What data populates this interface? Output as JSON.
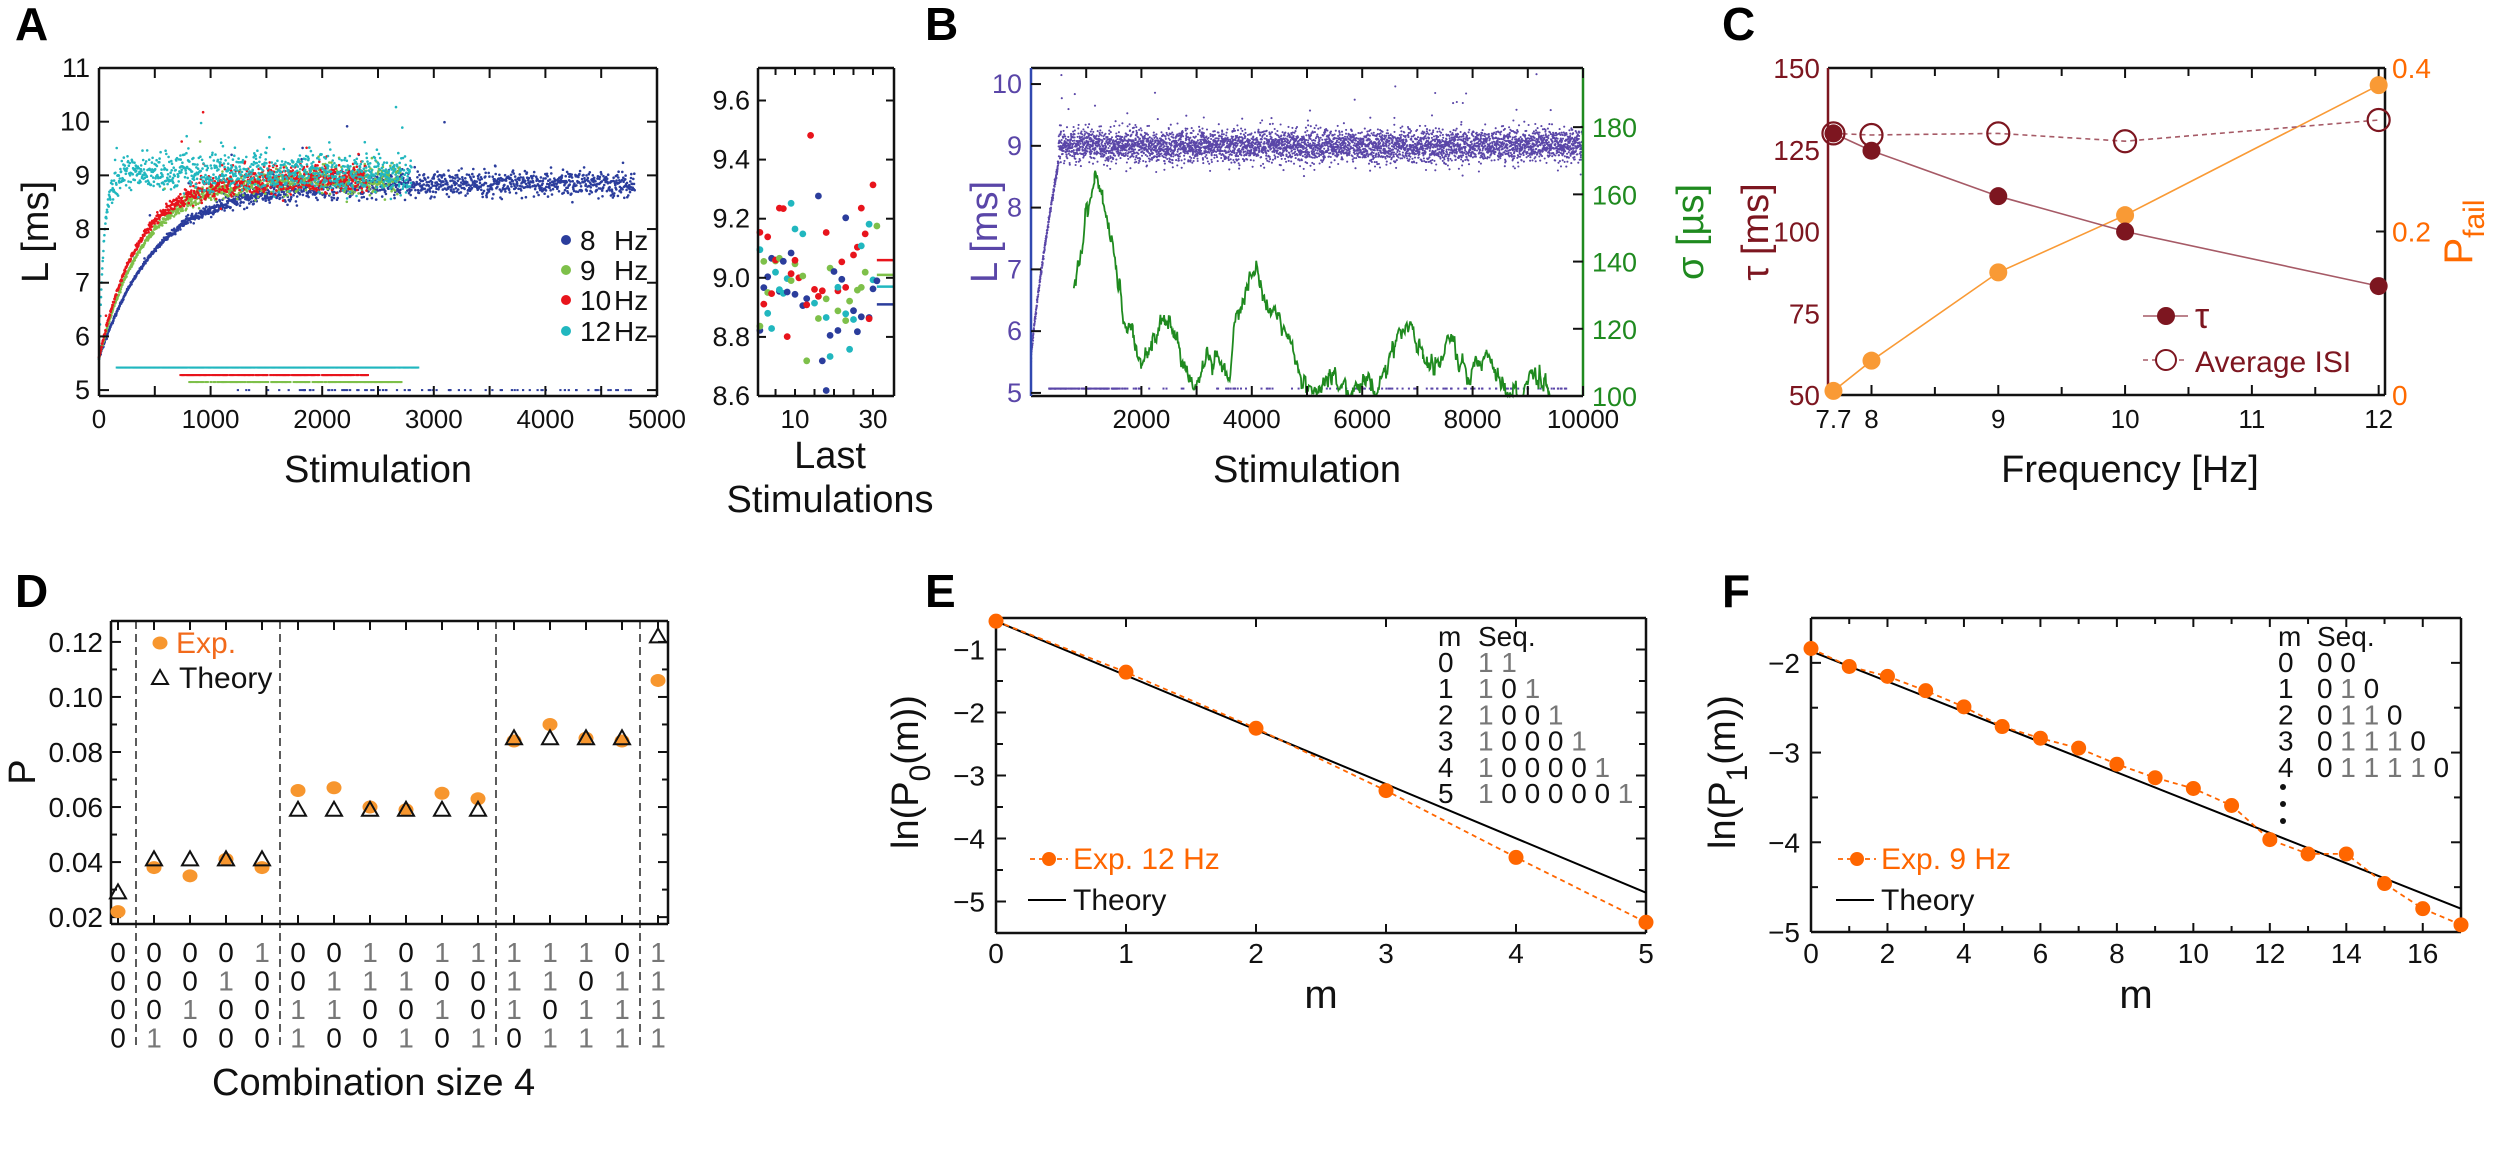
{
  "panel_labels": {
    "A": "A",
    "B": "B",
    "C": "C",
    "D": "D",
    "E": "E",
    "F": "F"
  },
  "chart_data": [
    {
      "panel": "A",
      "type": "scatter",
      "xlabel": "Stimulation",
      "ylabel": "L [ms]",
      "xlim": [
        0,
        5000
      ],
      "ylim": [
        4.89,
        11
      ],
      "xticks": [
        "0",
        "1000",
        "2000",
        "3000",
        "4000",
        "5000"
      ],
      "minor_xtick_step": 500,
      "yticks": [
        "5",
        "6",
        "7",
        "8",
        "9",
        "10",
        "11"
      ],
      "legend_position": "right",
      "series": [
        {
          "name": "8 Hz",
          "freq": "8",
          "unit": "Hz",
          "color": "#2b3d9c",
          "start": 5.6,
          "plateau": 8.85,
          "tau": 520,
          "noise_sd": 0.12,
          "x_range": [
            0,
            4800
          ],
          "failure_level": 5.0,
          "failure_range": [
            1200,
            4800
          ],
          "failure_density": 0.12
        },
        {
          "name": "9 Hz",
          "freq": "9",
          "unit": "Hz",
          "color": "#7ec04a",
          "start": 5.6,
          "plateau": 8.95,
          "tau": 400,
          "noise_sd": 0.13,
          "x_range": [
            0,
            2700
          ],
          "failure_level": 5.15,
          "failure_range": [
            800,
            2700
          ],
          "failure_density": 0.6
        },
        {
          "name": "10 Hz",
          "freq": "10",
          "unit": "Hz",
          "color": "#e8141c",
          "start": 5.6,
          "plateau": 8.95,
          "tau": 350,
          "noise_sd": 0.14,
          "x_range": [
            0,
            2400
          ],
          "failure_level": 5.28,
          "failure_range": [
            720,
            2400
          ],
          "failure_density": 0.7
        },
        {
          "name": "12 Hz",
          "freq": "12",
          "unit": "Hz",
          "color": "#21b7bf",
          "start": 5.6,
          "plateau": 9.05,
          "tau": 45,
          "noise_sd": 0.18,
          "x_range": [
            0,
            2800
          ],
          "failure_level": 5.42,
          "failure_range": [
            150,
            2850
          ],
          "failure_density": 0.95
        }
      ]
    },
    {
      "panel": "A-inset",
      "type": "scatter",
      "xlabel_lines": [
        "Last",
        "Stimulations"
      ],
      "xlim": [
        0.5,
        35.4
      ],
      "ylim": [
        8.6,
        9.71
      ],
      "xticks": [
        "10",
        "30"
      ],
      "minor_xticks": [
        5,
        10,
        15,
        20,
        25,
        30
      ],
      "yticks": [
        "8.6",
        "8.8",
        "9.0",
        "9.2",
        "9.4",
        "9.6"
      ],
      "n_points": 31,
      "noise_sd": 0.13,
      "series": [
        {
          "name": "8 Hz",
          "color": "#2b3d9c",
          "mean": 8.91
        },
        {
          "name": "9 Hz",
          "color": "#7ec04a",
          "mean": 9.01
        },
        {
          "name": "10 Hz",
          "color": "#e8141c",
          "mean": 9.06
        },
        {
          "name": "12 Hz",
          "color": "#21b7bf",
          "mean": 8.97
        }
      ]
    },
    {
      "panel": "B",
      "type": "scatter+line",
      "xlabel": "Stimulation",
      "ylabel": "L [ms]",
      "y2label": "σ [µs]",
      "xlim": [
        0,
        10000
      ],
      "ylim": [
        4.95,
        10.26
      ],
      "y2lim": [
        100,
        197.6
      ],
      "xticks": [
        "2000",
        "4000",
        "6000",
        "8000",
        "10000"
      ],
      "minor_xtick_step": 1000,
      "yticks": [
        "5",
        "6",
        "7",
        "8",
        "9",
        "10"
      ],
      "y2ticks": [
        "100",
        "120",
        "140",
        "160",
        "180"
      ],
      "latency": {
        "color": "#5a46a8",
        "start": 5.5,
        "rise_end": 500,
        "plateau": 9.0,
        "noise_sd": 0.13,
        "failure_level": 5.07
      },
      "sigma": {
        "color": "#1f8a1f",
        "knots": [
          [
            775,
            133
          ],
          [
            900,
            140
          ],
          [
            1000,
            155
          ],
          [
            1100,
            160
          ],
          [
            1150,
            166
          ],
          [
            1300,
            156
          ],
          [
            1450,
            148
          ],
          [
            1600,
            135
          ],
          [
            1700,
            120
          ],
          [
            1850,
            118
          ],
          [
            2000,
            110
          ],
          [
            2200,
            114
          ],
          [
            2400,
            124
          ],
          [
            2600,
            118
          ],
          [
            2800,
            108
          ],
          [
            3000,
            104
          ],
          [
            3200,
            112
          ],
          [
            3400,
            109
          ],
          [
            3600,
            106
          ],
          [
            3700,
            124
          ],
          [
            3900,
            132
          ],
          [
            4100,
            140
          ],
          [
            4200,
            129
          ],
          [
            4400,
            124
          ],
          [
            4700,
            117
          ],
          [
            4900,
            104
          ],
          [
            5200,
            101
          ],
          [
            5400,
            107
          ],
          [
            5800,
            101
          ],
          [
            6100,
            104
          ],
          [
            6300,
            102
          ],
          [
            6500,
            112
          ],
          [
            6700,
            118
          ],
          [
            6880,
            122
          ],
          [
            7100,
            112
          ],
          [
            7300,
            108
          ],
          [
            7600,
            117
          ],
          [
            7900,
            104
          ],
          [
            8250,
            114
          ],
          [
            8500,
            104
          ],
          [
            8700,
            100
          ],
          [
            8900,
            101
          ],
          [
            9050,
            107
          ],
          [
            9200,
            108
          ],
          [
            9350,
            101
          ],
          [
            9400,
            100
          ]
        ]
      }
    },
    {
      "panel": "C",
      "type": "line",
      "xlabel": "Frequency [Hz]",
      "ylabel": "τ [ms]",
      "y2label_main": "P",
      "y2label_sub": "fail",
      "xlim": [
        7.657,
        12.05
      ],
      "ylim": [
        50,
        150
      ],
      "y2lim": [
        0,
        0.4
      ],
      "xticks": [
        "7.7",
        "8",
        "9",
        "10",
        "11",
        "12"
      ],
      "minor_xticks": [
        8.5,
        9.5,
        10.5,
        11.5
      ],
      "yticks": [
        "50",
        "75",
        "100",
        "125",
        "150"
      ],
      "y2ticks": [
        "0",
        "0.2",
        "0.4"
      ],
      "x": [
        7.7,
        8,
        9,
        10,
        12
      ],
      "legend_position": "center-right",
      "series": [
        {
          "name": "τ",
          "axis": "left",
          "color": "#7d1620",
          "line_color": "#a65a66",
          "marker": "filled",
          "values": [
            130,
            124.7,
            110.8,
            100,
            83.3
          ]
        },
        {
          "name": "Average ISI",
          "axis": "left",
          "color": "#7d1620",
          "line_color": "#a65a66",
          "marker": "open",
          "dashed": true,
          "values": [
            130,
            129.5,
            130,
            127.6,
            134.1
          ]
        },
        {
          "name": "Pfail",
          "axis": "right",
          "color": "#f99a35",
          "line_color": "#f99a35",
          "marker": "filled",
          "values": [
            0.005,
            0.042,
            0.15,
            0.22,
            0.379
          ]
        }
      ]
    },
    {
      "panel": "D",
      "type": "scatter",
      "ylabel": "P",
      "xlabel": "Combination size 4",
      "ylim": [
        0.0175,
        0.1276
      ],
      "yticks": [
        "0.02",
        "0.04",
        "0.06",
        "0.08",
        "0.10",
        "0.12"
      ],
      "minor_yticks": [
        0.03,
        0.05,
        0.07,
        0.09,
        0.11
      ],
      "combinations": [
        [
          "0",
          "0",
          "0",
          "0"
        ],
        [
          "0",
          "0",
          "0",
          "1"
        ],
        [
          "0",
          "0",
          "1",
          "0"
        ],
        [
          "0",
          "1",
          "0",
          "0"
        ],
        [
          "1",
          "0",
          "0",
          "0"
        ],
        [
          "0",
          "0",
          "1",
          "1"
        ],
        [
          "0",
          "1",
          "1",
          "0"
        ],
        [
          "1",
          "1",
          "0",
          "0"
        ],
        [
          "0",
          "1",
          "0",
          "1"
        ],
        [
          "1",
          "0",
          "1",
          "0"
        ],
        [
          "1",
          "0",
          "0",
          "1"
        ],
        [
          "1",
          "1",
          "1",
          "0"
        ],
        [
          "1",
          "1",
          "0",
          "1"
        ],
        [
          "1",
          "0",
          "1",
          "1"
        ],
        [
          "0",
          "1",
          "1",
          "1"
        ],
        [
          "1",
          "1",
          "1",
          "1"
        ]
      ],
      "group_boundaries_after": [
        0,
        4,
        10,
        14
      ],
      "legend_position": "top-left",
      "series": [
        {
          "name": "Exp.",
          "color": "#f7962e",
          "marker": "filled-circle",
          "values": [
            0.022,
            0.038,
            0.035,
            0.041,
            0.038,
            0.066,
            0.067,
            0.06,
            0.059,
            0.065,
            0.063,
            0.084,
            0.09,
            0.085,
            0.084,
            0.106
          ]
        },
        {
          "name": "Theory",
          "color": "#111111",
          "marker": "open-triangle",
          "values": [
            0.029,
            0.041,
            0.041,
            0.041,
            0.041,
            0.059,
            0.059,
            0.059,
            0.059,
            0.059,
            0.059,
            0.085,
            0.085,
            0.085,
            0.085,
            0.122
          ]
        }
      ]
    },
    {
      "panel": "E",
      "type": "line",
      "xlabel": "m",
      "ylabel": {
        "pre": "ln(P",
        "sub": "0",
        "post": "(m))"
      },
      "xlim": [
        0,
        5
      ],
      "ylim": [
        -5.5,
        -0.5
      ],
      "xticks": [
        "0",
        "1",
        "2",
        "3",
        "4",
        "5"
      ],
      "yticks": [
        "−1",
        "−2",
        "−3",
        "−4",
        "−5"
      ],
      "minor_yticks": [
        -1.5,
        -2.5,
        -3.5,
        -4.5
      ],
      "legend_position": "bottom-left",
      "series": [
        {
          "name": "Exp. 12 Hz",
          "color": "#ff6600",
          "dashed": true,
          "x": [
            0,
            1,
            2,
            3,
            4,
            5
          ],
          "y": [
            -0.55,
            -1.36,
            -2.25,
            -3.24,
            -4.3,
            -5.33
          ]
        },
        {
          "name": "Theory",
          "color": "#000000",
          "x": [
            0,
            5
          ],
          "y": [
            -0.55,
            -4.86
          ]
        }
      ],
      "table": {
        "header_m": "m",
        "header_seq": "Seq.",
        "rows": [
          {
            "m": "0",
            "seq": [
              "1",
              "1"
            ]
          },
          {
            "m": "1",
            "seq": [
              "1",
              "0",
              "1"
            ]
          },
          {
            "m": "2",
            "seq": [
              "1",
              "0",
              "0",
              "1"
            ]
          },
          {
            "m": "3",
            "seq": [
              "1",
              "0",
              "0",
              "0",
              "1"
            ]
          },
          {
            "m": "4",
            "seq": [
              "1",
              "0",
              "0",
              "0",
              "0",
              "1"
            ]
          },
          {
            "m": "5",
            "seq": [
              "1",
              "0",
              "0",
              "0",
              "0",
              "0",
              "1"
            ]
          }
        ]
      }
    },
    {
      "panel": "F",
      "type": "line",
      "xlabel": "m",
      "ylabel": {
        "pre": "ln(P",
        "sub": "1",
        "post": "(m))"
      },
      "xlim": [
        0,
        17
      ],
      "ylim": [
        -5,
        -1.5
      ],
      "xticks": [
        "0",
        "2",
        "4",
        "6",
        "8",
        "10",
        "12",
        "14",
        "16"
      ],
      "minor_xticks": [
        1,
        3,
        5,
        7,
        9,
        11,
        13,
        15,
        17
      ],
      "yticks": [
        "−2",
        "−3",
        "−4",
        "−5"
      ],
      "minor_yticks": [
        -2.5,
        -3.5,
        -4.5
      ],
      "legend_position": "bottom-left",
      "series": [
        {
          "name": "Exp. 9 Hz",
          "color": "#ff6600",
          "dashed": true,
          "x": [
            0,
            1,
            2,
            3,
            4,
            5,
            6,
            7,
            8,
            9,
            10,
            11,
            12,
            13,
            14,
            15,
            16,
            17
          ],
          "y": [
            -1.84,
            -2.04,
            -2.15,
            -2.31,
            -2.49,
            -2.71,
            -2.84,
            -2.95,
            -3.13,
            -3.28,
            -3.4,
            -3.59,
            -3.97,
            -4.13,
            -4.13,
            -4.46,
            -4.74,
            -4.92
          ]
        },
        {
          "name": "Theory",
          "color": "#000000",
          "x": [
            0,
            17
          ],
          "y": [
            -1.87,
            -4.74
          ]
        }
      ],
      "table": {
        "header_m": "m",
        "header_seq": "Seq.",
        "rows": [
          {
            "m": "0",
            "seq": [
              "0",
              "0"
            ]
          },
          {
            "m": "1",
            "seq": [
              "0",
              "1",
              "0"
            ]
          },
          {
            "m": "2",
            "seq": [
              "0",
              "1",
              "1",
              "0"
            ]
          },
          {
            "m": "3",
            "seq": [
              "0",
              "1",
              "1",
              "1",
              "0"
            ]
          },
          {
            "m": "4",
            "seq": [
              "0",
              "1",
              "1",
              "1",
              "1",
              "0"
            ]
          }
        ],
        "continues": true
      }
    }
  ]
}
